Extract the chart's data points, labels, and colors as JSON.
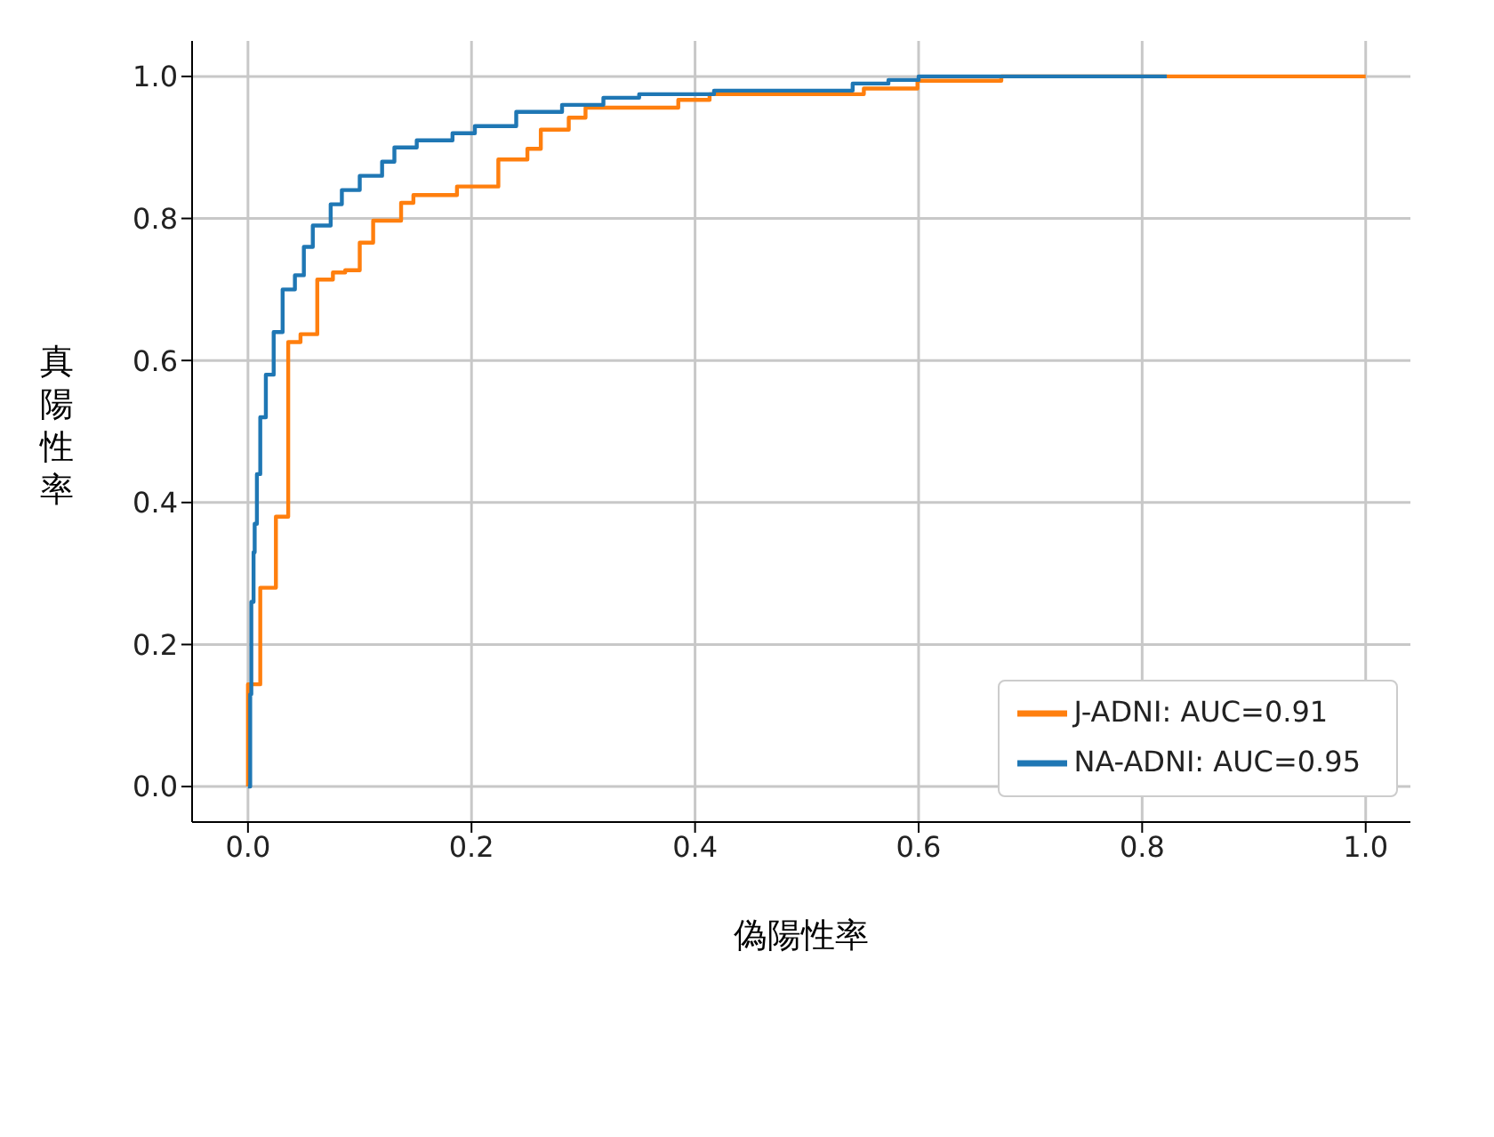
{
  "chart_data": {
    "type": "step",
    "xlabel": "偽陽性率",
    "ylabel": "真陽性率",
    "xlim": [
      -0.05,
      1.04
    ],
    "ylim": [
      -0.05,
      1.05
    ],
    "xticks": [
      {
        "value": 0,
        "label": "0.0"
      },
      0.2,
      0.4,
      0.6,
      0.8,
      {
        "value": 1,
        "label": "1.0"
      }
    ],
    "yticks": [
      {
        "value": 0,
        "label": "0.0"
      },
      0.2,
      0.4,
      0.6,
      0.8,
      {
        "value": 1,
        "label": "1.0"
      }
    ],
    "grid": true,
    "legend": "bottom right",
    "marker": "none",
    "series": [
      {
        "name": "NA-ADNI: AUC=0.95",
        "color": "#1f77b4",
        "x": [
          0,
          0.002,
          0.003,
          0.005,
          0.006,
          0.008,
          0.011,
          0.016,
          0.023,
          0.031,
          0.042,
          0.05,
          0.058,
          0.074,
          0.084,
          0.1,
          0.12,
          0.131,
          0.151,
          0.183,
          0.203,
          0.24,
          0.281,
          0.318,
          0.35,
          0.417,
          0.541,
          0.573,
          0.6,
          0.822
        ],
        "values": [
          0,
          0.13,
          0.26,
          0.33,
          0.37,
          0.44,
          0.52,
          0.58,
          0.64,
          0.7,
          0.72,
          0.76,
          0.79,
          0.82,
          0.84,
          0.86,
          0.88,
          0.9,
          0.91,
          0.92,
          0.93,
          0.95,
          0.96,
          0.97,
          0.975,
          0.98,
          0.99,
          0.995,
          1,
          1
        ]
      },
      {
        "name": "J-ADNI: AUC=0.91",
        "color": "#ff7f0e",
        "x": [
          0,
          0,
          0.011,
          0.025,
          0.036,
          0.047,
          0.062,
          0.076,
          0.087,
          0.1,
          0.112,
          0.137,
          0.148,
          0.187,
          0.224,
          0.25,
          0.262,
          0.287,
          0.302,
          0.385,
          0.413,
          0.551,
          0.599,
          0.674,
          1
        ],
        "values": [
          0,
          0.144,
          0.28,
          0.38,
          0.626,
          0.637,
          0.714,
          0.724,
          0.727,
          0.766,
          0.797,
          0.822,
          0.833,
          0.845,
          0.883,
          0.898,
          0.925,
          0.942,
          0.956,
          0.967,
          0.975,
          0.983,
          0.994,
          1,
          1
        ]
      }
    ]
  }
}
